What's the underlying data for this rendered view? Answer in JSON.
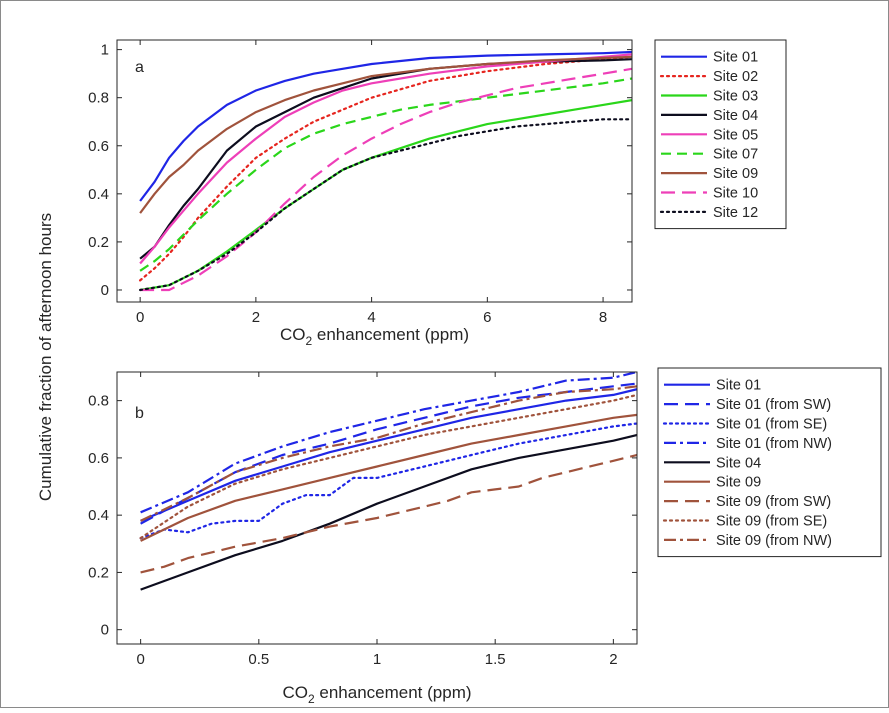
{
  "figure": {
    "ylabel": "Cumulative fraction of afternoon hours"
  },
  "colors": {
    "blue": "#1f26e6",
    "red": "#e6251f",
    "green": "#2ad61a",
    "black": "#0d0d1e",
    "magenta": "#ee3fb8",
    "brown": "#a0533c"
  },
  "chart_data": [
    {
      "type": "line",
      "panel_label": "a",
      "xlabel_main": "CO",
      "xlabel_sub": "2",
      "xlabel_rest": " enhancement (ppm)",
      "xlim": [
        -0.4,
        8.5
      ],
      "ylim": [
        -0.05,
        1.04
      ],
      "xticks": [
        0,
        2,
        4,
        6,
        8
      ],
      "yticks": [
        0,
        0.2,
        0.4,
        0.6,
        0.8,
        1
      ],
      "xtick_labels": [
        "0",
        "2",
        "4",
        "6",
        "8"
      ],
      "ytick_labels": [
        "0",
        "0.2",
        "0.4",
        "0.6",
        "0.8",
        "1"
      ],
      "legend_position": "outside-right",
      "series": [
        {
          "name": "Site 01",
          "color": "#1f26e6",
          "dash": "solid",
          "x": [
            0,
            0.25,
            0.5,
            0.75,
            1,
            1.5,
            2,
            2.5,
            3,
            3.5,
            4,
            5,
            6,
            7,
            8,
            8.5
          ],
          "y": [
            0.37,
            0.45,
            0.55,
            0.62,
            0.68,
            0.77,
            0.83,
            0.87,
            0.9,
            0.92,
            0.94,
            0.965,
            0.975,
            0.98,
            0.985,
            0.99
          ]
        },
        {
          "name": "Site 02",
          "color": "#e6251f",
          "dash": "dotted",
          "x": [
            0,
            0.25,
            0.5,
            0.75,
            1,
            1.5,
            2,
            2.5,
            3,
            3.5,
            4,
            5,
            6,
            7,
            8,
            8.5
          ],
          "y": [
            0.04,
            0.09,
            0.15,
            0.22,
            0.3,
            0.43,
            0.55,
            0.63,
            0.7,
            0.75,
            0.8,
            0.87,
            0.91,
            0.94,
            0.96,
            0.97
          ]
        },
        {
          "name": "Site 03",
          "color": "#2ad61a",
          "dash": "solid",
          "x": [
            0,
            0.5,
            1,
            1.5,
            2,
            2.5,
            3,
            3.5,
            4,
            4.5,
            5,
            5.5,
            6,
            6.5,
            7,
            7.5,
            8,
            8.5
          ],
          "y": [
            0.0,
            0.02,
            0.08,
            0.16,
            0.25,
            0.34,
            0.42,
            0.5,
            0.55,
            0.59,
            0.63,
            0.66,
            0.69,
            0.71,
            0.73,
            0.75,
            0.77,
            0.79
          ]
        },
        {
          "name": "Site 04",
          "color": "#0d0d1e",
          "dash": "solid",
          "x": [
            0,
            0.25,
            0.5,
            0.75,
            1,
            1.5,
            2,
            2.5,
            3,
            3.5,
            4,
            5,
            6,
            7,
            8,
            8.5
          ],
          "y": [
            0.13,
            0.18,
            0.27,
            0.35,
            0.42,
            0.58,
            0.68,
            0.74,
            0.8,
            0.84,
            0.88,
            0.92,
            0.94,
            0.95,
            0.955,
            0.96
          ]
        },
        {
          "name": "Site 05",
          "color": "#ee3fb8",
          "dash": "solid",
          "x": [
            0,
            0.25,
            0.5,
            0.75,
            1,
            1.5,
            2,
            2.5,
            3,
            3.5,
            4,
            5,
            6,
            7,
            8,
            8.5
          ],
          "y": [
            0.11,
            0.18,
            0.26,
            0.33,
            0.4,
            0.53,
            0.63,
            0.72,
            0.78,
            0.83,
            0.86,
            0.9,
            0.93,
            0.95,
            0.97,
            0.98
          ]
        },
        {
          "name": "Site 07",
          "color": "#2ad61a",
          "dash": "dashed",
          "x": [
            0,
            0.25,
            0.5,
            0.75,
            1,
            1.5,
            2,
            2.5,
            3,
            3.5,
            4,
            4.5,
            5,
            6,
            7,
            8,
            8.5
          ],
          "y": [
            0.08,
            0.12,
            0.17,
            0.23,
            0.29,
            0.4,
            0.5,
            0.59,
            0.65,
            0.69,
            0.72,
            0.75,
            0.77,
            0.8,
            0.83,
            0.86,
            0.88
          ]
        },
        {
          "name": "Site 09",
          "color": "#a0533c",
          "dash": "solid",
          "x": [
            0,
            0.25,
            0.5,
            0.75,
            1,
            1.5,
            2,
            2.5,
            3,
            3.5,
            4,
            5,
            6,
            7,
            8,
            8.5
          ],
          "y": [
            0.32,
            0.4,
            0.47,
            0.52,
            0.58,
            0.67,
            0.74,
            0.79,
            0.83,
            0.86,
            0.89,
            0.92,
            0.94,
            0.955,
            0.965,
            0.97
          ]
        },
        {
          "name": "Site 10",
          "color": "#ee3fb8",
          "dash": "longdash",
          "x": [
            0,
            0.5,
            1,
            1.5,
            2,
            2.5,
            3,
            3.5,
            4,
            4.5,
            5,
            5.5,
            6,
            6.5,
            7,
            7.5,
            8,
            8.5
          ],
          "y": [
            0.0,
            0.0,
            0.06,
            0.14,
            0.24,
            0.36,
            0.47,
            0.56,
            0.63,
            0.69,
            0.74,
            0.78,
            0.81,
            0.84,
            0.86,
            0.88,
            0.9,
            0.92
          ]
        },
        {
          "name": "Site 12",
          "color": "#0d0d1e",
          "dash": "dotted",
          "x": [
            0,
            0.5,
            1,
            1.5,
            2,
            2.5,
            3,
            3.5,
            4,
            4.5,
            5,
            5.5,
            6,
            6.5,
            7,
            7.5,
            8,
            8.5
          ],
          "y": [
            0.0,
            0.02,
            0.08,
            0.15,
            0.24,
            0.34,
            0.42,
            0.5,
            0.55,
            0.58,
            0.61,
            0.64,
            0.66,
            0.68,
            0.69,
            0.7,
            0.71,
            0.71
          ]
        }
      ]
    },
    {
      "type": "line",
      "panel_label": "b",
      "xlabel_main": "CO",
      "xlabel_sub": "2",
      "xlabel_rest": " enhancement (ppm)",
      "xlim": [
        -0.1,
        2.1
      ],
      "ylim": [
        -0.05,
        0.9
      ],
      "xticks": [
        0,
        0.5,
        1,
        1.5,
        2
      ],
      "yticks": [
        0,
        0.2,
        0.4,
        0.6,
        0.8
      ],
      "xtick_labels": [
        "0",
        "0.5",
        "1",
        "1.5",
        "2"
      ],
      "ytick_labels": [
        "0",
        "0.2",
        "0.4",
        "0.6",
        "0.8"
      ],
      "legend_position": "outside-right",
      "series": [
        {
          "name": "Site 01",
          "color": "#1f26e6",
          "dash": "solid",
          "x": [
            0,
            0.2,
            0.4,
            0.6,
            0.8,
            1,
            1.2,
            1.4,
            1.6,
            1.8,
            2,
            2.1
          ],
          "y": [
            0.38,
            0.45,
            0.52,
            0.57,
            0.62,
            0.66,
            0.7,
            0.74,
            0.77,
            0.8,
            0.82,
            0.84
          ]
        },
        {
          "name": "Site 01 (from SW)",
          "color": "#1f26e6",
          "dash": "longdash",
          "x": [
            0,
            0.2,
            0.4,
            0.6,
            0.8,
            1,
            1.2,
            1.4,
            1.6,
            1.8,
            2,
            2.1
          ],
          "y": [
            0.37,
            0.46,
            0.55,
            0.61,
            0.65,
            0.7,
            0.74,
            0.78,
            0.81,
            0.83,
            0.85,
            0.86
          ]
        },
        {
          "name": "Site 01 (from SE)",
          "color": "#1f26e6",
          "dash": "dotted",
          "x": [
            0,
            0.1,
            0.2,
            0.3,
            0.4,
            0.5,
            0.6,
            0.7,
            0.8,
            0.9,
            1,
            1.2,
            1.4,
            1.6,
            1.8,
            2,
            2.1
          ],
          "y": [
            0.32,
            0.35,
            0.34,
            0.37,
            0.38,
            0.38,
            0.44,
            0.47,
            0.47,
            0.53,
            0.53,
            0.57,
            0.61,
            0.65,
            0.68,
            0.71,
            0.72
          ]
        },
        {
          "name": "Site 01 (from NW)",
          "color": "#1f26e6",
          "dash": "dashdot",
          "x": [
            0,
            0.2,
            0.4,
            0.6,
            0.8,
            1,
            1.2,
            1.4,
            1.6,
            1.8,
            2,
            2.1
          ],
          "y": [
            0.41,
            0.48,
            0.58,
            0.64,
            0.69,
            0.73,
            0.77,
            0.8,
            0.83,
            0.87,
            0.88,
            0.9
          ]
        },
        {
          "name": "Site 04",
          "color": "#0d0d1e",
          "dash": "solid",
          "x": [
            0,
            0.2,
            0.4,
            0.6,
            0.8,
            1,
            1.2,
            1.4,
            1.6,
            1.8,
            2,
            2.1
          ],
          "y": [
            0.14,
            0.2,
            0.26,
            0.31,
            0.37,
            0.44,
            0.5,
            0.56,
            0.6,
            0.63,
            0.66,
            0.68
          ]
        },
        {
          "name": "Site 09",
          "color": "#a0533c",
          "dash": "solid",
          "x": [
            0,
            0.2,
            0.4,
            0.6,
            0.8,
            1,
            1.2,
            1.4,
            1.6,
            1.8,
            2,
            2.1
          ],
          "y": [
            0.31,
            0.39,
            0.45,
            0.49,
            0.53,
            0.57,
            0.61,
            0.65,
            0.68,
            0.71,
            0.74,
            0.75
          ]
        },
        {
          "name": "Site 09 (from SW)",
          "color": "#a0533c",
          "dash": "longdash",
          "x": [
            0,
            0.1,
            0.2,
            0.4,
            0.6,
            0.8,
            1,
            1.2,
            1.3,
            1.4,
            1.5,
            1.6,
            1.7,
            1.8,
            2,
            2.1
          ],
          "y": [
            0.2,
            0.22,
            0.25,
            0.29,
            0.32,
            0.36,
            0.39,
            0.43,
            0.45,
            0.48,
            0.49,
            0.5,
            0.53,
            0.55,
            0.59,
            0.61
          ]
        },
        {
          "name": "Site 09 (from SE)",
          "color": "#a0533c",
          "dash": "dotted",
          "x": [
            0,
            0.2,
            0.4,
            0.6,
            0.8,
            1,
            1.2,
            1.4,
            1.6,
            1.8,
            2,
            2.1
          ],
          "y": [
            0.32,
            0.43,
            0.51,
            0.56,
            0.6,
            0.64,
            0.68,
            0.71,
            0.74,
            0.77,
            0.8,
            0.82
          ]
        },
        {
          "name": "Site 09 (from NW)",
          "color": "#a0533c",
          "dash": "dashdot",
          "x": [
            0,
            0.2,
            0.4,
            0.6,
            0.8,
            1,
            1.2,
            1.4,
            1.6,
            1.8,
            2,
            2.1
          ],
          "y": [
            0.38,
            0.46,
            0.55,
            0.6,
            0.64,
            0.67,
            0.72,
            0.76,
            0.8,
            0.83,
            0.84,
            0.85
          ]
        }
      ]
    }
  ]
}
